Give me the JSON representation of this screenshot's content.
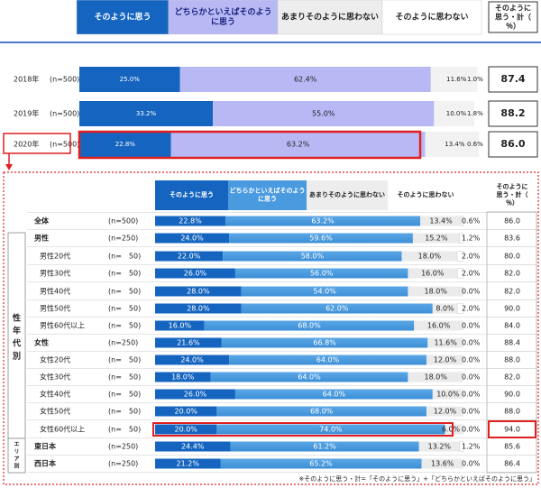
{
  "colors": {
    "strongly": "#1565c0",
    "somewhat_top": "#b8b8f5",
    "somewhat_bottom": "#3c8fd6",
    "not_much": "#ededed",
    "not_at_all": "#ffffff",
    "highlight": "#e02020",
    "divider": "#4a78c8"
  },
  "top_legend": {
    "strongly": "そのように思う",
    "somewhat": "どちらかといえばそのように思う",
    "not_much": "あまりそのように思わない",
    "not_at_all": "そのように思わない",
    "total_header": "そのように思う・計（％）"
  },
  "bottom_legend": {
    "strongly": "そのように思う",
    "somewhat": "どちらかといえばそのように思う",
    "not_much": "あまりそのように思わない",
    "not_at_all": "そのように思わない",
    "total_header": "そのように思う・計（％）"
  },
  "side_labels": {
    "gender_age": "性年代別",
    "area": "エリア別"
  },
  "footnote": "※そのように思う・計=「そのように思う」+「どちらかといえばそのように思う」",
  "chart_data": [
    {
      "type": "bar",
      "orientation": "horizontal",
      "stacked": "100%",
      "categories": [
        "2018年",
        "2019年",
        "2020年"
      ],
      "sample_sizes": [
        "(n=500)",
        "(n=500)",
        "(n=500)"
      ],
      "series": [
        {
          "name": "そのように思う",
          "values": [
            25.0,
            33.2,
            22.8
          ]
        },
        {
          "name": "どちらかといえばそのように思う",
          "values": [
            62.4,
            55.0,
            63.2
          ]
        },
        {
          "name": "あまりそのように思わない",
          "values": [
            11.6,
            10.0,
            13.4
          ]
        },
        {
          "name": "そのように思わない",
          "values": [
            1.0,
            1.8,
            0.6
          ]
        }
      ],
      "value_labels": [
        [
          "25.0%",
          "62.4%",
          "11.6%",
          "1.0%"
        ],
        [
          "33.2%",
          "55.0%",
          "10.0%",
          "1.8%"
        ],
        [
          "22.8%",
          "63.2%",
          "13.4%",
          "0.6%"
        ]
      ],
      "totals": [
        "87.4",
        "88.2",
        "86.0"
      ],
      "highlighted_row": 2
    },
    {
      "type": "bar",
      "orientation": "horizontal",
      "stacked": "100%",
      "categories": [
        "全体",
        "男性",
        "男性20代",
        "男性30代",
        "男性40代",
        "男性50代",
        "男性60代以上",
        "女性",
        "女性20代",
        "女性30代",
        "女性40代",
        "女性50代",
        "女性60代以上",
        "東日本",
        "西日本"
      ],
      "sample_sizes": [
        "(n=500)",
        "(n=250)",
        "(n=　50)",
        "(n=　50)",
        "(n=　50)",
        "(n=　50)",
        "(n=　50)",
        "(n=250)",
        "(n=　50)",
        "(n=　50)",
        "(n=　50)",
        "(n=　50)",
        "(n=　50)",
        "(n=250)",
        "(n=250)"
      ],
      "series": [
        {
          "name": "そのように思う",
          "values": [
            22.8,
            24.0,
            22.0,
            26.0,
            28.0,
            28.0,
            16.0,
            21.6,
            24.0,
            18.0,
            26.0,
            20.0,
            20.0,
            24.4,
            21.2
          ]
        },
        {
          "name": "どちらかといえばそのように思う",
          "values": [
            63.2,
            59.6,
            58.0,
            56.0,
            54.0,
            62.0,
            68.0,
            66.8,
            64.0,
            64.0,
            64.0,
            68.0,
            74.0,
            61.2,
            65.2
          ]
        },
        {
          "name": "あまりそのように思わない",
          "values": [
            13.4,
            15.2,
            18.0,
            16.0,
            18.0,
            8.0,
            16.0,
            11.6,
            12.0,
            18.0,
            10.0,
            12.0,
            6.0,
            13.2,
            13.6
          ]
        },
        {
          "name": "そのように思わない",
          "values": [
            0.6,
            1.2,
            2.0,
            2.0,
            0.0,
            2.0,
            0.0,
            0.0,
            0.0,
            0.0,
            0.0,
            0.0,
            0.0,
            1.2,
            0.0
          ]
        }
      ],
      "value_labels": [
        [
          "22.8%",
          "63.2%",
          "13.4%",
          "0.6%"
        ],
        [
          "24.0%",
          "59.6%",
          "15.2%",
          "1.2%"
        ],
        [
          "22.0%",
          "58.0%",
          "18.0%",
          "2.0%"
        ],
        [
          "26.0%",
          "56.0%",
          "16.0%",
          "2.0%"
        ],
        [
          "28.0%",
          "54.0%",
          "18.0%",
          "0.0%"
        ],
        [
          "28.0%",
          "62.0%",
          "8.0%",
          "2.0%"
        ],
        [
          "16.0%",
          "68.0%",
          "16.0%",
          "0.0%"
        ],
        [
          "21.6%",
          "66.8%",
          "11.6%",
          "0.0%"
        ],
        [
          "24.0%",
          "64.0%",
          "12.0%",
          "0.0%"
        ],
        [
          "18.0%",
          "64.0%",
          "18.0%",
          "0.0%"
        ],
        [
          "26.0%",
          "64.0%",
          "10.0%",
          "0.0%"
        ],
        [
          "20.0%",
          "68.0%",
          "12.0%",
          "0.0%"
        ],
        [
          "20.0%",
          "74.0%",
          "6.0%",
          "0.0%"
        ],
        [
          "24.4%",
          "61.2%",
          "13.2%",
          "1.2%"
        ],
        [
          "21.2%",
          "65.2%",
          "13.6%",
          "0.0%"
        ]
      ],
      "totals": [
        "86.0",
        "83.6",
        "80.0",
        "82.0",
        "82.0",
        "90.0",
        "84.0",
        "88.4",
        "88.0",
        "82.0",
        "90.0",
        "88.0",
        "94.0",
        "85.6",
        "86.4"
      ],
      "highlighted_row": 12
    }
  ]
}
